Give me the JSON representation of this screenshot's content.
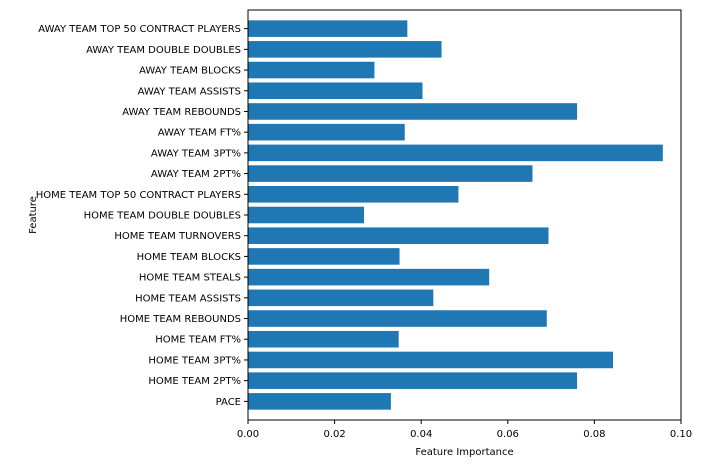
{
  "chart_data": {
    "type": "bar",
    "orientation": "horizontal",
    "title": "",
    "xlabel": "Feature Importance",
    "ylabel": "Feature",
    "xlim": [
      0,
      0.1
    ],
    "xticks": [
      0.0,
      0.02,
      0.04,
      0.06,
      0.08,
      0.1
    ],
    "xtick_labels": [
      "0.00",
      "0.02",
      "0.04",
      "0.06",
      "0.08",
      "0.10"
    ],
    "grid": false,
    "bar_color": "#1f77b4",
    "categories": [
      "PACE",
      "HOME TEAM 2PT%",
      "HOME TEAM 3PT%",
      "HOME TEAM FT%",
      "HOME TEAM REBOUNDS",
      "HOME TEAM ASSISTS",
      "HOME TEAM STEALS",
      "HOME TEAM BLOCKS",
      "HOME TEAM TURNOVERS",
      "HOME TEAM DOUBLE DOUBLES",
      "HOME TEAM TOP 50 CONTRACT PLAYERS",
      "AWAY TEAM 2PT%",
      "AWAY TEAM 3PT%",
      "AWAY TEAM FT%",
      "AWAY TEAM REBOUNDS",
      "AWAY TEAM ASSISTS",
      "AWAY TEAM BLOCKS",
      "AWAY TEAM DOUBLE DOUBLES",
      "AWAY TEAM TOP 50 CONTRACT PLAYERS"
    ],
    "values": [
      0.033,
      0.076,
      0.0843,
      0.0348,
      0.069,
      0.0428,
      0.0557,
      0.035,
      0.0694,
      0.0268,
      0.0486,
      0.0657,
      0.0958,
      0.0362,
      0.076,
      0.0403,
      0.0292,
      0.0447,
      0.0368
    ]
  }
}
